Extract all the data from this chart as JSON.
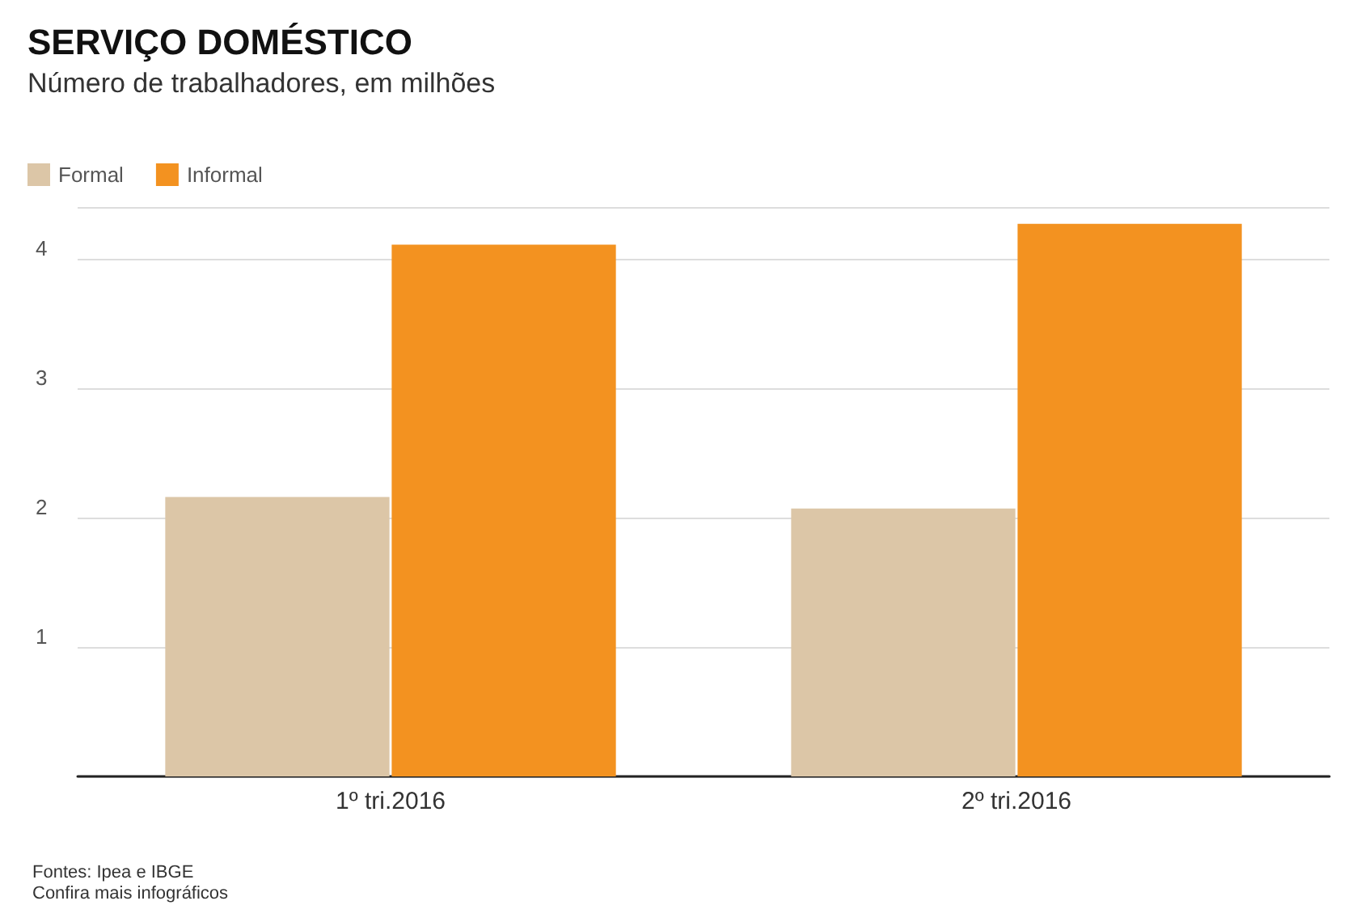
{
  "chart_data": {
    "type": "bar",
    "title": "SERVIÇO DOMÉSTICO",
    "subtitle": "Número de trabalhadores, em milhões",
    "categories": [
      "1º tri.2016",
      "2º tri.2016"
    ],
    "series": [
      {
        "name": "Formal",
        "color": "#dcc6a7",
        "values": [
          2.16,
          2.07
        ]
      },
      {
        "name": "Informal",
        "color": "#f39220",
        "values": [
          4.11,
          4.27
        ]
      }
    ],
    "ylim": [
      0,
      4.4
    ],
    "yticks": [
      1,
      2,
      3,
      4
    ],
    "grid": "y",
    "legend": "top left",
    "annotations": [
      "Fontes: Ipea e IBGE",
      "Confira mais infográficos"
    ]
  }
}
